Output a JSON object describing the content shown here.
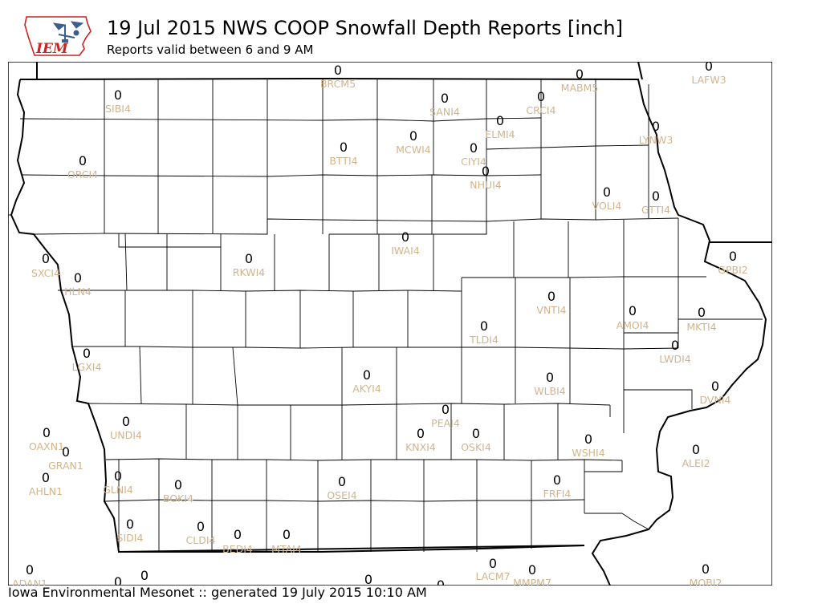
{
  "header": {
    "title": "19 Jul 2015 NWS COOP Snowfall Depth Reports [inch]",
    "subtitle": "Reports valid between 6 and 9 AM",
    "logo_text": "IEM"
  },
  "footer": {
    "text": "Iowa Environmental Mesonet :: generated 19 July 2015 10:10 AM"
  },
  "colors": {
    "station_label": "#d2b48c",
    "value_text": "#000000",
    "boundary": "#000000",
    "logo_red": "#cc2222",
    "logo_blue": "#3c5f8c"
  },
  "stations": [
    {
      "id": "BRCM5",
      "value": "0"
    },
    {
      "id": "LAFW3",
      "value": "0"
    },
    {
      "id": "MABM5",
      "value": "0"
    },
    {
      "id": "SIBI4",
      "value": "0"
    },
    {
      "id": "SANI4",
      "value": "0"
    },
    {
      "id": "CRCI4",
      "value": "0"
    },
    {
      "id": "ELMI4",
      "value": "0"
    },
    {
      "id": "LYNW3",
      "value": "0"
    },
    {
      "id": "MCWI4",
      "value": "0"
    },
    {
      "id": "BTTI4",
      "value": "0"
    },
    {
      "id": "CIYI4",
      "value": "0"
    },
    {
      "id": "ORCI4",
      "value": "0"
    },
    {
      "id": "NHUI4",
      "value": "0"
    },
    {
      "id": "VOLI4",
      "value": "0"
    },
    {
      "id": "GTTI4",
      "value": "0"
    },
    {
      "id": "IWAI4",
      "value": "0"
    },
    {
      "id": "SXCI4",
      "value": "0"
    },
    {
      "id": "RKWI4",
      "value": "0"
    },
    {
      "id": "GPBI2",
      "value": "0"
    },
    {
      "id": "HLN4",
      "value": "0"
    },
    {
      "id": "VNTI4",
      "value": "0"
    },
    {
      "id": "AMOI4",
      "value": "0"
    },
    {
      "id": "MKTI4",
      "value": "0"
    },
    {
      "id": "TLDI4",
      "value": "0"
    },
    {
      "id": "LWDI4",
      "value": "0"
    },
    {
      "id": "LGXI4",
      "value": "0"
    },
    {
      "id": "AKYI4",
      "value": "0"
    },
    {
      "id": "WLBI4",
      "value": "0"
    },
    {
      "id": "DVNI4",
      "value": "0"
    },
    {
      "id": "PEAI4",
      "value": "0"
    },
    {
      "id": "UNDI4",
      "value": "0"
    },
    {
      "id": "KNXI4",
      "value": "0"
    },
    {
      "id": "OSKI4",
      "value": "0"
    },
    {
      "id": "OAXN1",
      "value": "0"
    },
    {
      "id": "WSHI4",
      "value": "0"
    },
    {
      "id": "GRAN1",
      "value": "0"
    },
    {
      "id": "ALEI2",
      "value": "0"
    },
    {
      "id": "AHLN1",
      "value": "0"
    },
    {
      "id": "GLNI4",
      "value": "0"
    },
    {
      "id": "OSEI4",
      "value": "0"
    },
    {
      "id": "FRFI4",
      "value": "0"
    },
    {
      "id": "BOKI4",
      "value": "0"
    },
    {
      "id": "SIDI4",
      "value": "0"
    },
    {
      "id": "CLDI4",
      "value": "0"
    },
    {
      "id": "BEDI4",
      "value": "0"
    },
    {
      "id": "MTAI4",
      "value": "0"
    },
    {
      "id": "LACM7",
      "value": "0"
    },
    {
      "id": "MMPM7",
      "value": "0"
    },
    {
      "id": "ADAN1",
      "value": "0"
    },
    {
      "id": "MOBI2",
      "value": "0"
    }
  ],
  "partial_values": [
    "0",
    "0",
    "0",
    "0"
  ]
}
